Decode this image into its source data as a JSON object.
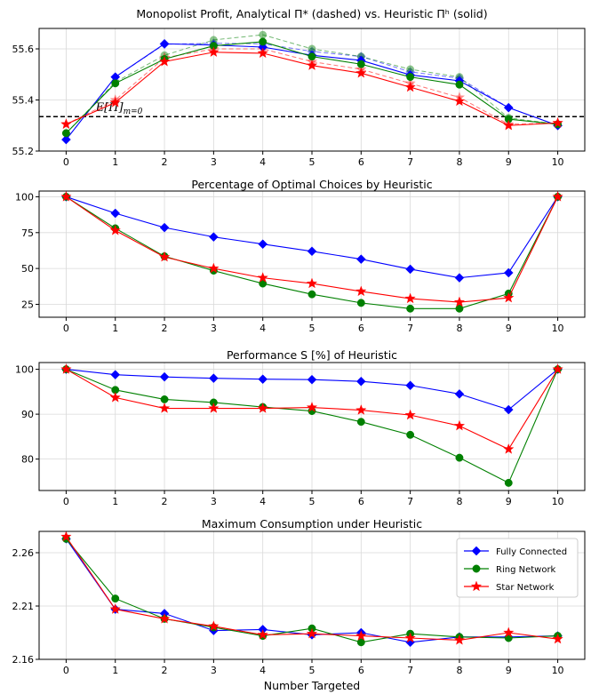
{
  "chart_data": [
    {
      "type": "line",
      "title": "Monopolist Profit, Analytical Π* (dashed) vs. Heuristic Πʰ (solid)",
      "xlabel": "",
      "ylabel": "",
      "x": [
        0,
        1,
        2,
        3,
        4,
        5,
        6,
        7,
        8,
        9,
        10
      ],
      "xticks": [
        "0",
        "1",
        "2",
        "3",
        "4",
        "5",
        "6",
        "7",
        "8",
        "9",
        "10"
      ],
      "ylim": [
        55.2,
        55.68
      ],
      "yticks": [
        "55.2",
        "55.4",
        "55.6"
      ],
      "grid": true,
      "reference_line": {
        "value": 55.335,
        "label": "E[Π]m=0"
      },
      "series": [
        {
          "name": "Fully Connected",
          "color": "#0000ff",
          "marker": "diamond",
          "style": "solid",
          "values": [
            55.245,
            55.49,
            55.62,
            55.615,
            55.607,
            55.575,
            55.555,
            55.498,
            55.475,
            55.37,
            55.3
          ]
        },
        {
          "name": "Ring Network",
          "color": "#008000",
          "marker": "circle",
          "style": "solid",
          "values": [
            55.27,
            55.465,
            55.56,
            55.612,
            55.628,
            55.57,
            55.54,
            55.49,
            55.46,
            55.325,
            55.305
          ]
        },
        {
          "name": "Star Network",
          "color": "#ff0000",
          "marker": "star",
          "style": "solid",
          "values": [
            55.305,
            55.39,
            55.55,
            55.587,
            55.583,
            55.535,
            55.505,
            55.45,
            55.395,
            55.3,
            55.31
          ]
        },
        {
          "name": "",
          "color": "#0000ff",
          "marker": "diamond",
          "style": "dashed",
          "values": [
            55.245,
            55.49,
            55.618,
            55.622,
            55.62,
            55.59,
            55.57,
            55.51,
            55.485,
            55.37,
            55.3
          ]
        },
        {
          "name": "",
          "color": "#008000",
          "marker": "circle",
          "style": "dashed",
          "values": [
            55.27,
            55.47,
            55.575,
            55.635,
            55.655,
            55.6,
            55.57,
            55.52,
            55.49,
            55.33,
            55.305
          ]
        },
        {
          "name": "",
          "color": "#ff0000",
          "marker": "star",
          "style": "dashed",
          "values": [
            55.305,
            55.4,
            55.565,
            55.6,
            55.6,
            55.55,
            55.52,
            55.465,
            55.41,
            55.305,
            55.31
          ]
        }
      ]
    },
    {
      "type": "line",
      "title": "Percentage of Optimal Choices by Heuristic",
      "xlabel": "",
      "ylabel": "",
      "x": [
        0,
        1,
        2,
        3,
        4,
        5,
        6,
        7,
        8,
        9,
        10
      ],
      "xticks": [
        "0",
        "1",
        "2",
        "3",
        "4",
        "5",
        "6",
        "7",
        "8",
        "9",
        "10"
      ],
      "ylim": [
        16,
        104
      ],
      "yticks": [
        "25",
        "50",
        "75",
        "100"
      ],
      "grid": true,
      "series": [
        {
          "name": "Fully Connected",
          "color": "#0000ff",
          "marker": "diamond",
          "style": "solid",
          "values": [
            100,
            88.5,
            78.5,
            72,
            67,
            62,
            56.5,
            49.5,
            43.5,
            47,
            100
          ]
        },
        {
          "name": "Ring Network",
          "color": "#008000",
          "marker": "circle",
          "style": "solid",
          "values": [
            100,
            78,
            58.5,
            48.5,
            39.5,
            32,
            26,
            22,
            22,
            32.5,
            100
          ]
        },
        {
          "name": "Star Network",
          "color": "#ff0000",
          "marker": "star",
          "style": "solid",
          "values": [
            100,
            76.5,
            58,
            50,
            43.5,
            39.5,
            34,
            29,
            26.5,
            29.5,
            100
          ]
        }
      ]
    },
    {
      "type": "line",
      "title": "Performance S [%] of Heuristic",
      "xlabel": "",
      "ylabel": "",
      "x": [
        0,
        1,
        2,
        3,
        4,
        5,
        6,
        7,
        8,
        9,
        10
      ],
      "xticks": [
        "0",
        "1",
        "2",
        "3",
        "4",
        "5",
        "6",
        "7",
        "8",
        "9",
        "10"
      ],
      "ylim": [
        73,
        101.5
      ],
      "yticks": [
        "80",
        "90",
        "100"
      ],
      "grid": true,
      "series": [
        {
          "name": "Fully Connected",
          "color": "#0000ff",
          "marker": "diamond",
          "style": "solid",
          "values": [
            100,
            98.8,
            98.3,
            98,
            97.8,
            97.7,
            97.3,
            96.4,
            94.5,
            91,
            100
          ]
        },
        {
          "name": "Ring Network",
          "color": "#008000",
          "marker": "circle",
          "style": "solid",
          "values": [
            100,
            95.4,
            93.3,
            92.6,
            91.6,
            90.7,
            88.3,
            85.4,
            80.3,
            74.7,
            100
          ]
        },
        {
          "name": "Star Network",
          "color": "#ff0000",
          "marker": "star",
          "style": "solid",
          "values": [
            100,
            93.7,
            91.3,
            91.3,
            91.3,
            91.5,
            90.9,
            89.8,
            87.4,
            82.2,
            100
          ]
        }
      ]
    },
    {
      "type": "line",
      "title": "Maximum Consumption under Heuristic",
      "xlabel": "Number Targeted",
      "ylabel": "",
      "x": [
        0,
        1,
        2,
        3,
        4,
        5,
        6,
        7,
        8,
        9,
        10
      ],
      "xticks": [
        "0",
        "1",
        "2",
        "3",
        "4",
        "5",
        "6",
        "7",
        "8",
        "9",
        "10"
      ],
      "ylim": [
        2.16,
        2.28
      ],
      "yticks": [
        "2.16",
        "2.21",
        "2.26"
      ],
      "grid": true,
      "legend": {
        "position": "top-right",
        "entries": [
          "Fully Connected",
          "Ring Network",
          "Star Network"
        ]
      },
      "series": [
        {
          "name": "Fully Connected",
          "color": "#0000ff",
          "marker": "diamond",
          "style": "solid",
          "values": [
            2.273,
            2.207,
            2.203,
            2.187,
            2.188,
            2.183,
            2.185,
            2.176,
            2.181,
            2.181,
            2.182
          ]
        },
        {
          "name": "Ring Network",
          "color": "#008000",
          "marker": "circle",
          "style": "solid",
          "values": [
            2.273,
            2.217,
            2.198,
            2.19,
            2.182,
            2.189,
            2.176,
            2.184,
            2.181,
            2.18,
            2.182
          ]
        },
        {
          "name": "Star Network",
          "color": "#ff0000",
          "marker": "star",
          "style": "solid",
          "values": [
            2.275,
            2.207,
            2.198,
            2.191,
            2.183,
            2.184,
            2.182,
            2.18,
            2.178,
            2.185,
            2.179
          ]
        }
      ]
    }
  ]
}
